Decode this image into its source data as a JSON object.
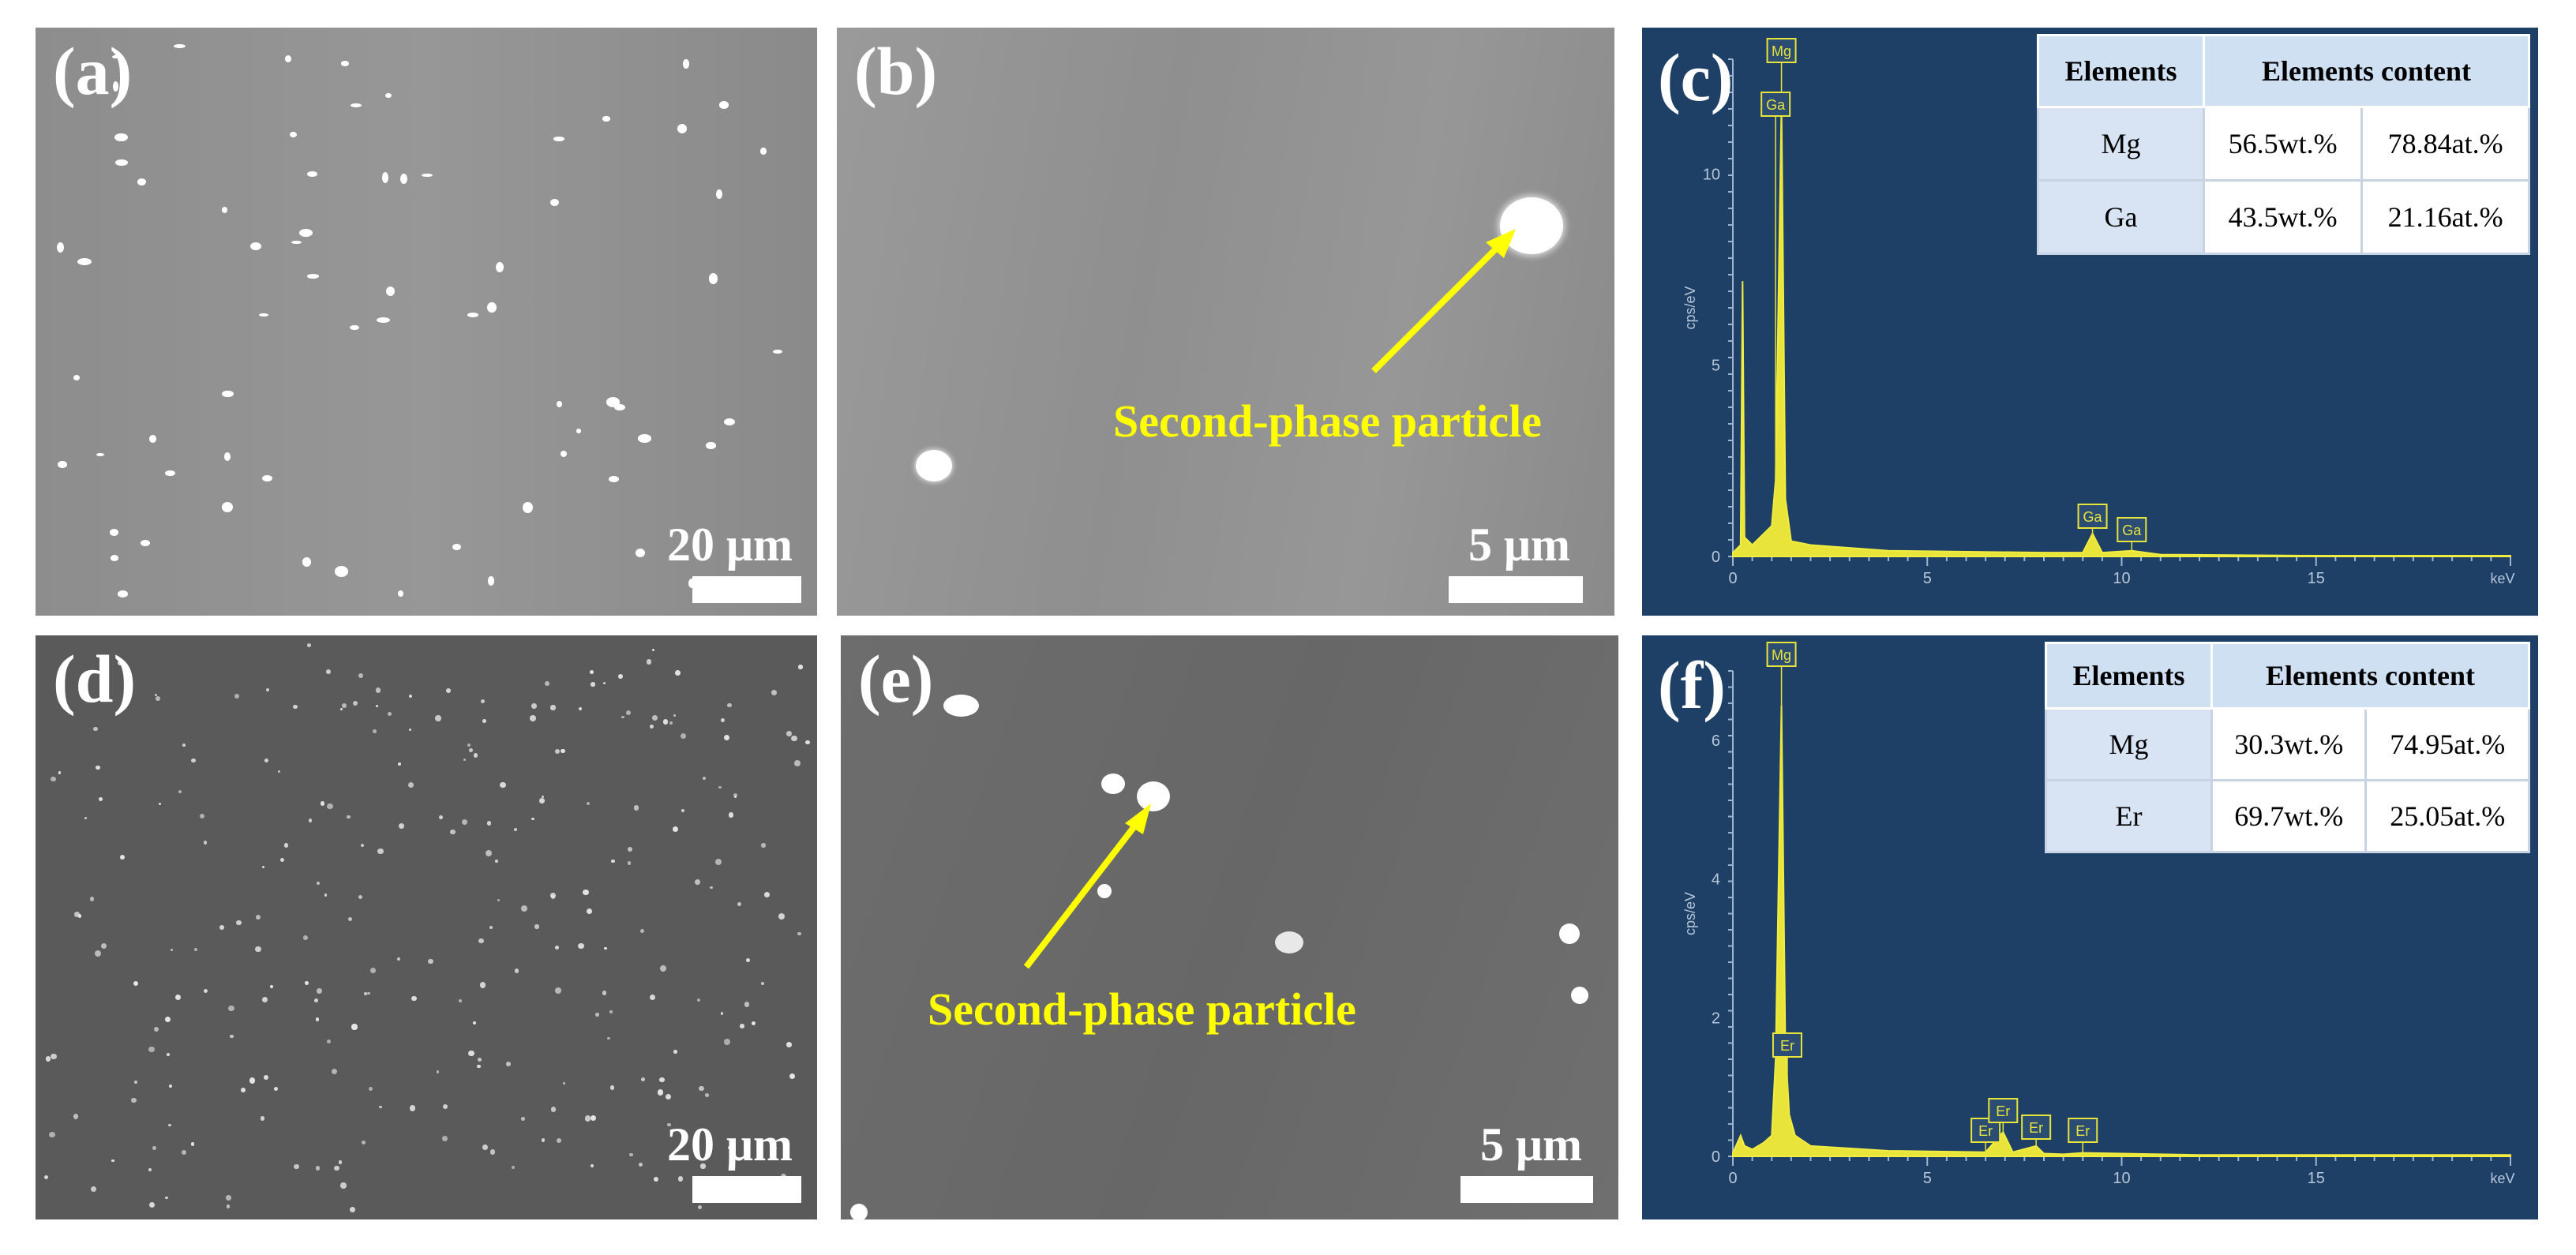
{
  "panels": {
    "a": {
      "label": "(a)",
      "scale": "20 μm"
    },
    "b": {
      "label": "(b)",
      "scale": "5 μm",
      "annotation": "Second-phase particle"
    },
    "c": {
      "label": "(c)"
    },
    "d": {
      "label": "(d)",
      "scale": "20 μm"
    },
    "e": {
      "label": "(e)",
      "scale": "5 μm",
      "annotation": "Second-phase particle"
    },
    "f": {
      "label": "(f)"
    }
  },
  "eds_c": {
    "ylabel": "cps/eV",
    "xlabel": "keV",
    "peaks": [
      "Mg",
      "Ga",
      "Ga",
      "Ga"
    ],
    "table": {
      "headers": [
        "Elements",
        "Elements content"
      ],
      "rows": [
        {
          "element": "Mg",
          "wt": "56.5wt.%",
          "at": "78.84at.%"
        },
        {
          "element": "Ga",
          "wt": "43.5wt.%",
          "at": "21.16at.%"
        }
      ]
    }
  },
  "eds_f": {
    "ylabel": "cps/eV",
    "xlabel": "keV",
    "peaks": [
      "Mg",
      "Er",
      "Er",
      "Er",
      "Er",
      "Er"
    ],
    "table": {
      "headers": [
        "Elements",
        "Elements content"
      ],
      "rows": [
        {
          "element": "Mg",
          "wt": "30.3wt.%",
          "at": "74.95at.%"
        },
        {
          "element": "Er",
          "wt": "69.7wt.%",
          "at": "25.05at.%"
        }
      ]
    }
  },
  "chart_data": [
    {
      "type": "line",
      "panel": "c",
      "xlabel": "keV",
      "ylabel": "cps/eV",
      "xlim": [
        0,
        20
      ],
      "ylim": [
        0,
        13
      ],
      "xticks": [
        0,
        5,
        10,
        15
      ],
      "yticks": [
        0,
        5,
        10
      ],
      "series": [
        {
          "x": [
            0.0,
            0.2,
            0.25,
            0.3,
            0.5,
            1.0,
            1.1,
            1.25,
            1.35,
            1.5,
            2.0,
            4.0,
            8.0,
            9.0,
            9.25,
            9.5,
            10.26,
            11.0,
            15.0,
            20.0
          ],
          "y": [
            0.1,
            0.3,
            7.2,
            0.5,
            0.3,
            0.8,
            2.0,
            11.8,
            1.5,
            0.4,
            0.3,
            0.15,
            0.1,
            0.1,
            0.6,
            0.1,
            0.15,
            0.05,
            0.02,
            0.02
          ]
        }
      ],
      "annotations": [
        {
          "text": "Mg",
          "x": 1.25
        },
        {
          "text": "Ga",
          "x": 1.1
        },
        {
          "text": "Ga",
          "x": 9.25
        },
        {
          "text": "Ga",
          "x": 10.26
        }
      ]
    },
    {
      "type": "line",
      "panel": "f",
      "xlabel": "keV",
      "ylabel": "cps/eV",
      "xlim": [
        0,
        20
      ],
      "ylim": [
        0,
        7
      ],
      "xticks": [
        0,
        5,
        10,
        15
      ],
      "yticks": [
        0,
        2,
        4,
        6
      ],
      "series": [
        {
          "x": [
            0.0,
            0.2,
            0.3,
            0.5,
            0.8,
            1.0,
            1.1,
            1.25,
            1.35,
            1.45,
            1.6,
            2.0,
            4.0,
            6.5,
            6.95,
            7.2,
            7.8,
            8.0,
            8.5,
            9.0,
            12.0,
            20.0
          ],
          "y": [
            0.05,
            0.3,
            0.15,
            0.1,
            0.2,
            0.3,
            1.4,
            6.5,
            1.6,
            0.6,
            0.3,
            0.15,
            0.08,
            0.06,
            0.35,
            0.06,
            0.15,
            0.04,
            0.03,
            0.05,
            0.02,
            0.02
          ]
        }
      ],
      "annotations": [
        {
          "text": "Mg",
          "x": 1.25
        },
        {
          "text": "Er",
          "x": 1.4
        },
        {
          "text": "Er",
          "x": 6.5
        },
        {
          "text": "Er",
          "x": 6.95
        },
        {
          "text": "Er",
          "x": 7.8
        },
        {
          "text": "Er",
          "x": 9.0
        }
      ]
    }
  ]
}
